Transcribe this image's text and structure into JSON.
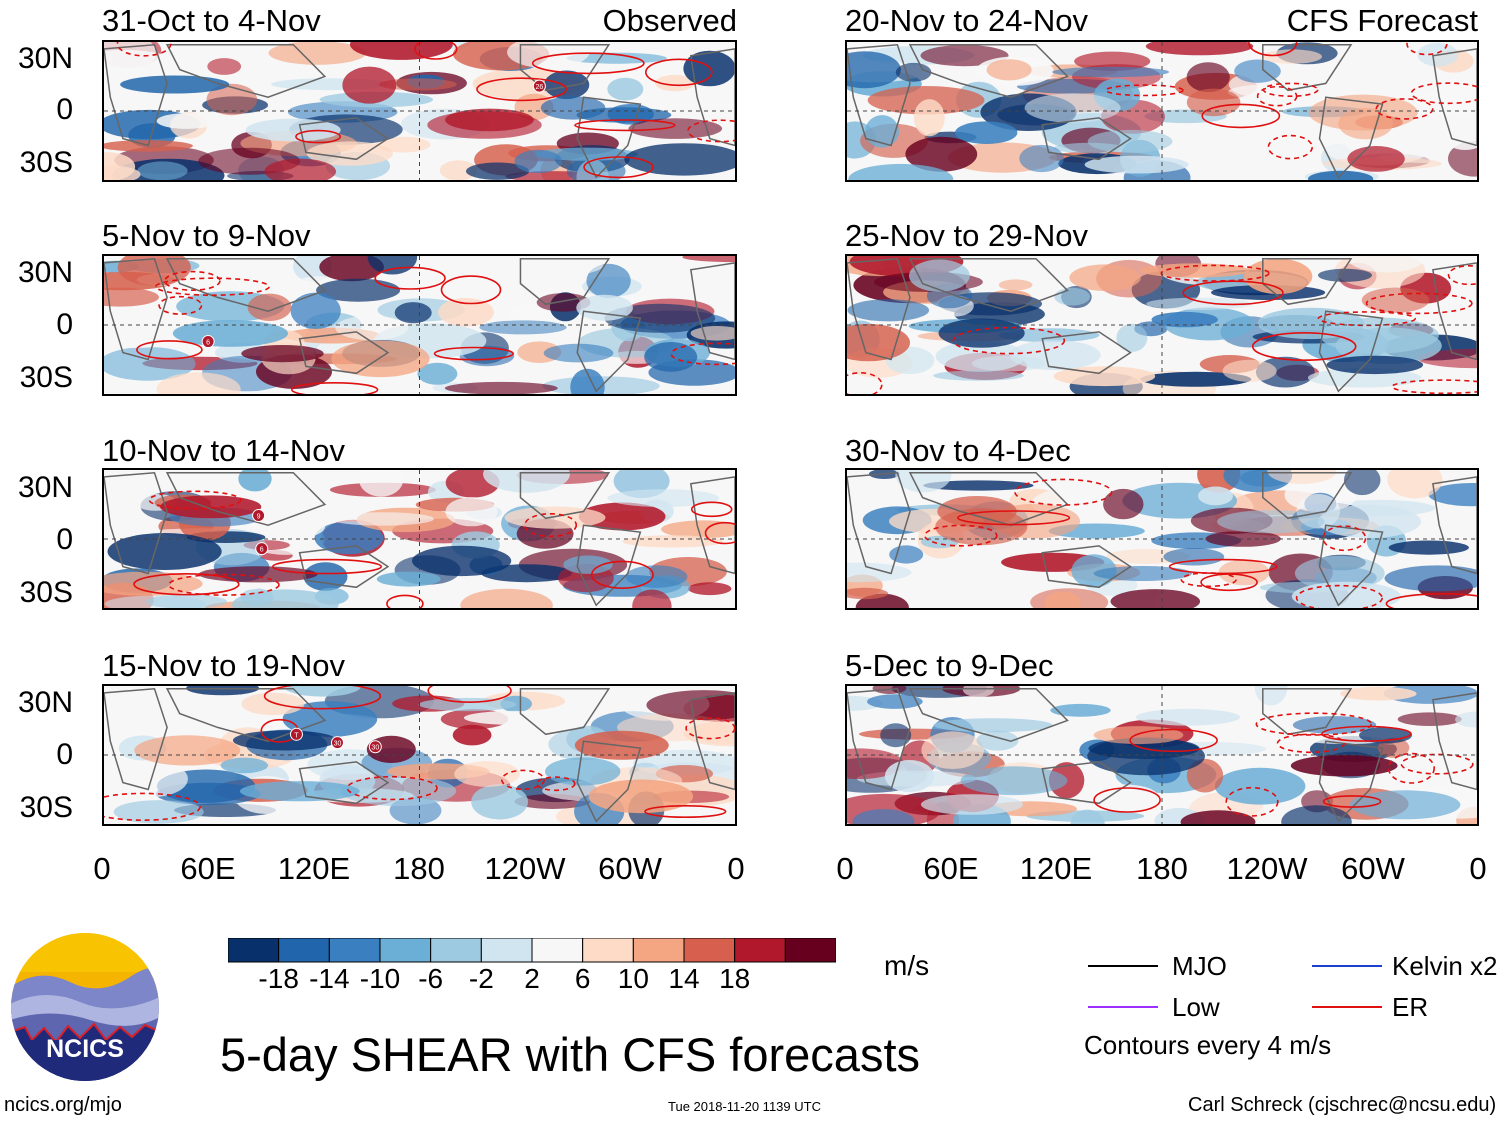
{
  "panels_observed": [
    {
      "title": "31-Oct to 4-Nov",
      "tag": "Observed"
    },
    {
      "title": "5-Nov to 9-Nov",
      "tag": ""
    },
    {
      "title": "10-Nov to 14-Nov",
      "tag": ""
    },
    {
      "title": "15-Nov to 19-Nov",
      "tag": ""
    }
  ],
  "panels_forecast": [
    {
      "title": "20-Nov to 24-Nov",
      "tag": "CFS Forecast"
    },
    {
      "title": "25-Nov to 29-Nov",
      "tag": ""
    },
    {
      "title": "30-Nov to 4-Dec",
      "tag": ""
    },
    {
      "title": "5-Dec to 9-Dec",
      "tag": ""
    }
  ],
  "lat_labels": [
    "30N",
    "0",
    "30S"
  ],
  "lon_labels": [
    "0",
    "60E",
    "120E",
    "180",
    "120W",
    "60W",
    "0"
  ],
  "storm_markers": [
    "26",
    "6",
    "9",
    "6",
    "T",
    "30",
    "30"
  ],
  "colorbar": {
    "colors": [
      "#08306b",
      "#2166ac",
      "#3a7fbf",
      "#6baed6",
      "#9ecae1",
      "#d1e5f0",
      "#f7f7f7",
      "#fddbc7",
      "#f4a582",
      "#d6604d",
      "#b2182b",
      "#67001f"
    ],
    "labels": [
      "-18",
      "-14",
      "-10",
      "-6",
      "-2",
      "2",
      "6",
      "10",
      "14",
      "18"
    ],
    "units": "m/s"
  },
  "legend": {
    "items": [
      {
        "label": "MJO",
        "color": "#000000"
      },
      {
        "label": "Kelvin x2",
        "color": "#1f3fcf"
      },
      {
        "label": "Low",
        "color": "#9b30ff"
      },
      {
        "label": "ER",
        "color": "#e01010"
      }
    ],
    "note": "Contours every 4 m/s"
  },
  "logo_text": "NCICS",
  "main_title": "5-day SHEAR with CFS forecasts",
  "footer": {
    "url": "ncics.org/mjo",
    "timestamp": "Tue 2018-11-20 1139 UTC",
    "credit": "Carl Schreck (cjschrec@ncsu.edu)"
  }
}
